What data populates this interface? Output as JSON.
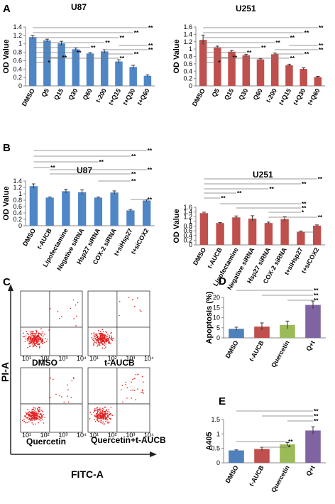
{
  "panel_labels": [
    "A",
    "B",
    "C",
    "D",
    "E"
  ],
  "flow": {
    "x_axis_label": "FITC-A",
    "y_axis_label": "PI-A",
    "quadrant_labels": [
      "DMSO",
      "t-AUCB",
      "Quercetin",
      "Quercetin+t-AUCB"
    ],
    "tick_labels": [
      "10¹",
      "10²",
      "10³",
      "10⁴"
    ]
  },
  "chart_data": [
    {
      "id": "A-U87",
      "type": "bar",
      "title": "U87",
      "ylabel": "OD Value",
      "ylim": [
        0,
        1.4
      ],
      "yticks": [
        "0",
        "0.2",
        "0.4",
        "0.6",
        "0.8",
        "1",
        "1.2",
        "1.4"
      ],
      "color": "#4f86c6",
      "categories": [
        "DMSO",
        "Q5",
        "Q15",
        "Q30",
        "Q60",
        "t-200",
        "t+Q15",
        "t+Q30",
        "t+Q60"
      ],
      "values": [
        1.16,
        1.08,
        1.01,
        0.87,
        0.77,
        0.82,
        0.58,
        0.45,
        0.24
      ],
      "errors": [
        0.04,
        0.03,
        0.05,
        0.03,
        0.02,
        0.04,
        0.04,
        0.04,
        0.02
      ],
      "grid": false,
      "annotations": [
        "*",
        "**",
        "**",
        "**",
        "**",
        "**",
        "**",
        "**",
        "**",
        "**",
        "**",
        "**"
      ]
    },
    {
      "id": "A-U251",
      "type": "bar",
      "title": "U251",
      "ylabel": "OD Value",
      "ylim": [
        0,
        1.6
      ],
      "yticks": [
        "0",
        "0.2",
        "0.4",
        "0.6",
        "0.8",
        "1",
        "1.2",
        "1.4",
        "1.6"
      ],
      "color": "#c0504d",
      "categories": [
        "DMSO",
        "Q5",
        "Q15",
        "Q30",
        "Q60",
        "t-200",
        "t+Q15",
        "t+Q30",
        "t+Q60"
      ],
      "values": [
        1.25,
        1.05,
        0.93,
        0.83,
        0.72,
        0.86,
        0.56,
        0.46,
        0.24
      ],
      "errors": [
        0.13,
        0.03,
        0.03,
        0.03,
        0.02,
        0.03,
        0.03,
        0.03,
        0.02
      ],
      "grid": false,
      "annotations": [
        "*",
        "**",
        "**",
        "**",
        "**",
        "**",
        "**",
        "**",
        "**",
        "**",
        "**",
        "**"
      ]
    },
    {
      "id": "B-U87",
      "type": "bar",
      "title": "U87",
      "ylabel": "OD Value",
      "ylim": [
        0,
        1.4
      ],
      "yticks": [
        "0",
        "0.2",
        "0.4",
        "0.6",
        "0.8",
        "1",
        "1.2",
        "1.4"
      ],
      "color": "#4f86c6",
      "categories": [
        "DMSO",
        "t-AUCB",
        "Lipofectamine",
        "Negative siRNA",
        "Hsp27 siRNA",
        "COX-2 siRNA",
        "t+siHsp27",
        "t+siCOX2"
      ],
      "values": [
        1.24,
        0.88,
        1.08,
        1.05,
        0.88,
        1.04,
        0.48,
        0.79
      ],
      "errors": [
        0.07,
        0.02,
        0.06,
        0.07,
        0.02,
        0.05,
        0.03,
        0.03
      ],
      "grid": false,
      "annotations": [
        "**",
        "**",
        "**",
        "**",
        "**",
        "**",
        "**",
        "**"
      ]
    },
    {
      "id": "B-U251",
      "type": "bar",
      "title": "U251",
      "ylabel": "OD Value",
      "ylim": [
        0,
        1.6
      ],
      "yticks": [
        "0",
        "0.2",
        "0.4",
        "0.6",
        "0.8",
        "1",
        "1.2",
        "1.4",
        "1.6"
      ],
      "color": "#c0504d",
      "categories": [
        "DMSO",
        "t-AUCB",
        "Lipofectamine",
        "Negative siRNA",
        "Hsp27 siRNA",
        "COX-2 siRNA",
        "t+siHsp27",
        "t+siCOX2"
      ],
      "values": [
        1.35,
        0.93,
        1.17,
        1.12,
        0.93,
        1.1,
        0.56,
        0.82
      ],
      "errors": [
        0.04,
        0.02,
        0.06,
        0.12,
        0.04,
        0.1,
        0.03,
        0.03
      ],
      "grid": false,
      "annotations": [
        "**",
        "**",
        "**",
        "**",
        "**",
        "**",
        "**",
        "*",
        "**"
      ]
    },
    {
      "id": "D",
      "type": "bar",
      "title": "",
      "ylabel": "Apoptosis (%)",
      "ylim": [
        0,
        20
      ],
      "yticks": [
        "0",
        "5",
        "10",
        "15",
        "20"
      ],
      "categories": [
        "DMSO",
        "t-AUCB",
        "Quercetin",
        "Q+t"
      ],
      "values": [
        4.5,
        5.6,
        6.4,
        16.3
      ],
      "errors": [
        0.8,
        1.8,
        1.9,
        1.9
      ],
      "bar_colors": [
        "#4f81bd",
        "#c0504d",
        "#9bbb59",
        "#8064a2"
      ],
      "grid": false,
      "annotations": [
        "**",
        "**",
        "**"
      ]
    },
    {
      "id": "E",
      "type": "bar",
      "title": "",
      "ylabel": "A405",
      "ylim": [
        0,
        1.5
      ],
      "yticks": [
        "0",
        "0.5",
        "1",
        "1.5"
      ],
      "categories": [
        "DMSO",
        "t-AUCB",
        "Quercetin",
        "Q+t"
      ],
      "values": [
        0.43,
        0.48,
        0.64,
        1.12
      ],
      "errors": [
        0.02,
        0.06,
        0.06,
        0.13
      ],
      "bar_colors": [
        "#4f81bd",
        "#c0504d",
        "#9bbb59",
        "#8064a2"
      ],
      "grid": false,
      "annotations": [
        "**",
        "*",
        "**",
        "**",
        "**"
      ]
    }
  ]
}
